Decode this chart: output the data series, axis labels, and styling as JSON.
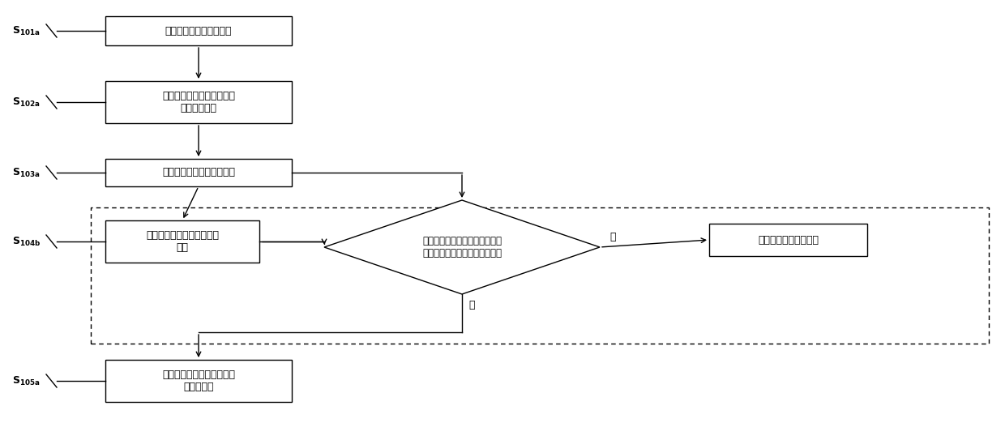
{
  "bg_color": "#ffffff",
  "box_color": "#ffffff",
  "box_edge": "#000000",
  "text_color": "#000000",
  "arrow_color": "#000000",
  "dashed_rect_color": "#000000",
  "box1_text": "设置上联端口为关闭状态",
  "box2_text": "该至少一下联端口接收到该\n外网连接指令",
  "box3_text": "上联端口开放并接通广域网",
  "box4_text": "下联端口接收到该外网断开\n指令",
  "diamond_text": "检测在一预设时长的时间段内局\n域网与广域网间是否有数据传输",
  "box5_right_text": "不断开和广域网的连接",
  "box6_text": "上联端口断开和广域网的连\n接，并关闭",
  "s101": "S",
  "s101_sub": "101a",
  "s102": "S",
  "s102_sub": "102a",
  "s103": "S",
  "s103_sub": "103a",
  "s104": "S",
  "s104_sub": "104b",
  "s105": "S",
  "s105_sub": "105a",
  "yes_label": "是",
  "no_label": "否",
  "fig_width": 12.4,
  "fig_height": 5.22,
  "dpi": 100
}
